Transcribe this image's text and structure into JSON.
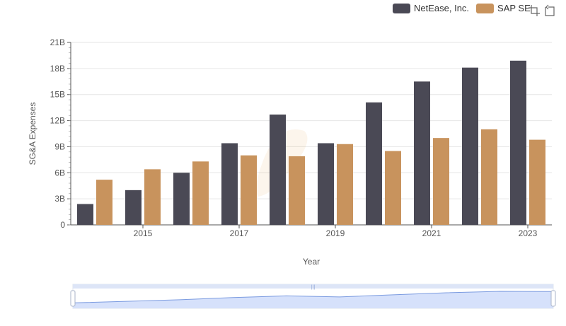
{
  "colors": {
    "netease": "#4a4955",
    "sap": "#c8935d",
    "grid": "#e6e6e6",
    "axis": "#555555",
    "brush_fill": "#d6e1fb",
    "brush_line": "#7b9be0",
    "brush_bar": "#dde5f7"
  },
  "toolbar": {
    "icons": [
      "zoom-select-icon",
      "zoom-reset-icon"
    ]
  },
  "chart_data": {
    "type": "bar",
    "title": "",
    "xlabel": "Year",
    "ylabel": "SG&A Expenses",
    "x": [
      2014,
      2015,
      2016,
      2017,
      2018,
      2019,
      2020,
      2021,
      2022,
      2023
    ],
    "x_tick_labels": [
      "2015",
      "2017",
      "2019",
      "2021",
      "2023"
    ],
    "x_tick_values": [
      2015,
      2017,
      2019,
      2021,
      2023
    ],
    "ylim": [
      0,
      21
    ],
    "y_ticks": [
      0,
      3,
      6,
      9,
      12,
      15,
      18,
      21
    ],
    "y_tick_labels": [
      "0",
      "3B",
      "6B",
      "9B",
      "12B",
      "15B",
      "18B",
      "21B"
    ],
    "unit": "billions",
    "grid": true,
    "legend_position": "top-right",
    "series": [
      {
        "name": "NetEase, Inc.",
        "values": [
          2.4,
          4.0,
          6.0,
          9.4,
          12.7,
          9.4,
          14.1,
          16.5,
          18.1,
          18.9
        ]
      },
      {
        "name": "SAP SE",
        "values": [
          5.2,
          6.4,
          7.3,
          8.0,
          7.9,
          9.3,
          8.5,
          10.0,
          11.0,
          9.8
        ]
      }
    ]
  }
}
